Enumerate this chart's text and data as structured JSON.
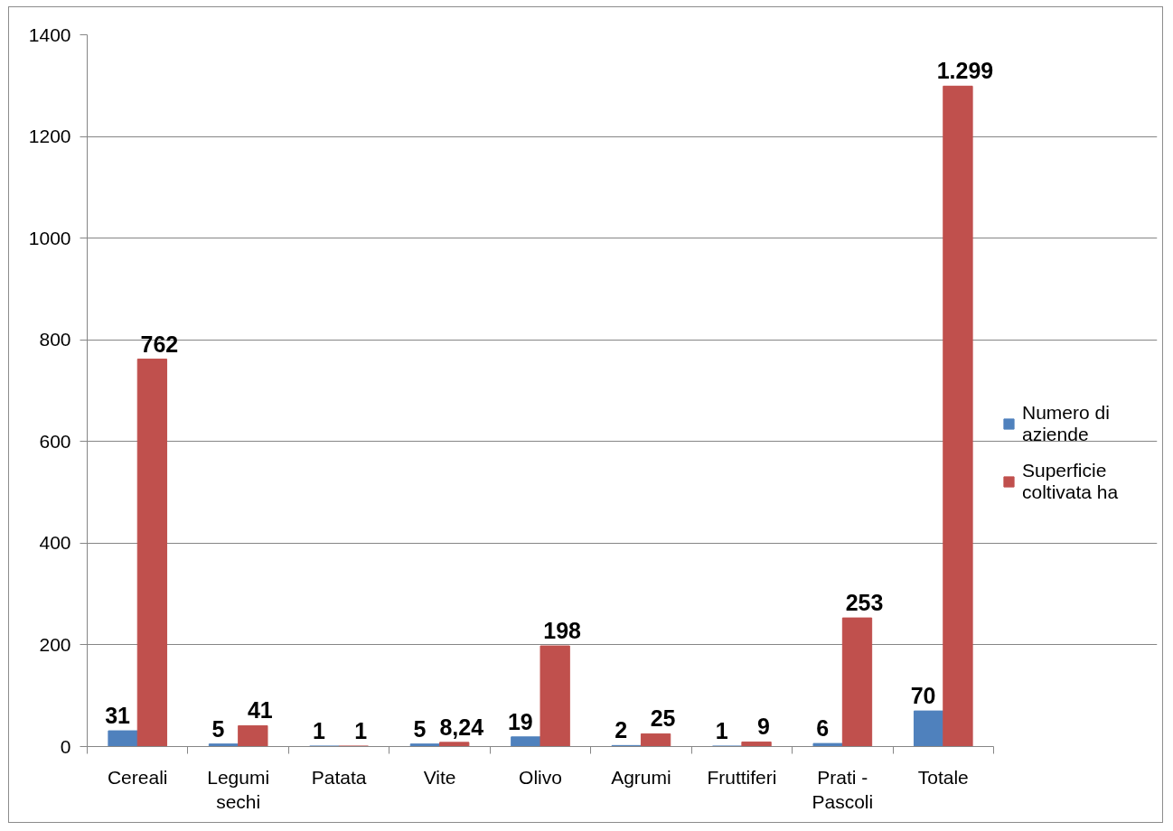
{
  "chart_data": {
    "type": "bar",
    "categories": [
      "Cereali",
      "Legumi sechi",
      "Patata",
      "Vite",
      "Olivo",
      "Agrumi",
      "Fruttiferi",
      "Prati - Pascoli",
      "Totale"
    ],
    "series": [
      {
        "name": "Numero di aziende",
        "color": "#4f81bd",
        "values": [
          31,
          5,
          1,
          5,
          19,
          2,
          1,
          6,
          70
        ],
        "value_labels": [
          "31",
          "5",
          "1",
          "5",
          "19",
          "2",
          "1",
          "6",
          "70"
        ]
      },
      {
        "name": "Superficie coltivata ha",
        "color": "#c0504d",
        "values": [
          762,
          41,
          1,
          8.24,
          198,
          25,
          9,
          253,
          1299
        ],
        "value_labels": [
          "762",
          "41",
          "1",
          "8,24",
          "198",
          "25",
          "9",
          "253",
          "1.299"
        ]
      }
    ],
    "ylim": [
      0,
      1400
    ],
    "yticks": [
      0,
      200,
      400,
      600,
      800,
      1000,
      1200,
      1400
    ],
    "grid": "y",
    "legend": "right"
  }
}
